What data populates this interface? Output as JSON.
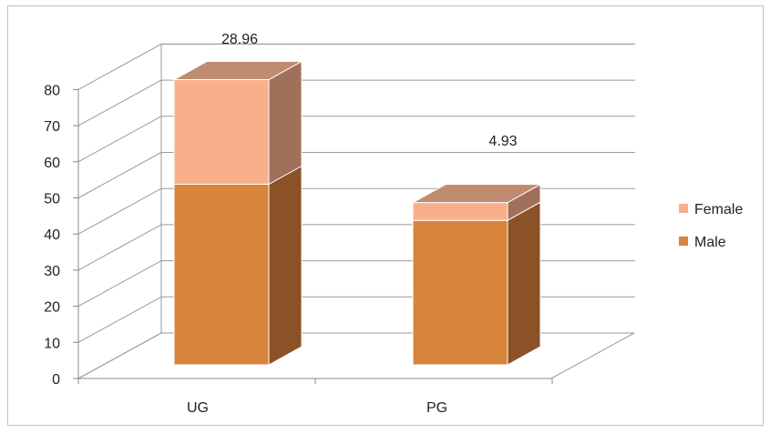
{
  "chart_data": {
    "type": "bar",
    "stacked": true,
    "style": "3d-stacked-column",
    "categories": [
      "UG",
      "PG"
    ],
    "series": [
      {
        "name": "Male",
        "values": [
          50,
          40
        ],
        "color": "#D9843B",
        "side_color": "#8B5228",
        "top_color": "#B07A52"
      },
      {
        "name": "Female",
        "values": [
          28.96,
          4.93
        ],
        "color": "#F9AF8A",
        "side_color": "#A0705A",
        "top_color": "#BF8C72"
      }
    ],
    "data_labels": [
      "28.96",
      "4.93"
    ],
    "yticks": [
      "0",
      "10",
      "20",
      "30",
      "40",
      "50",
      "60",
      "70",
      "80"
    ],
    "ylim": [
      0,
      80
    ],
    "grid": true,
    "legend_position": "right",
    "title": "",
    "xlabel": "",
    "ylabel": ""
  }
}
